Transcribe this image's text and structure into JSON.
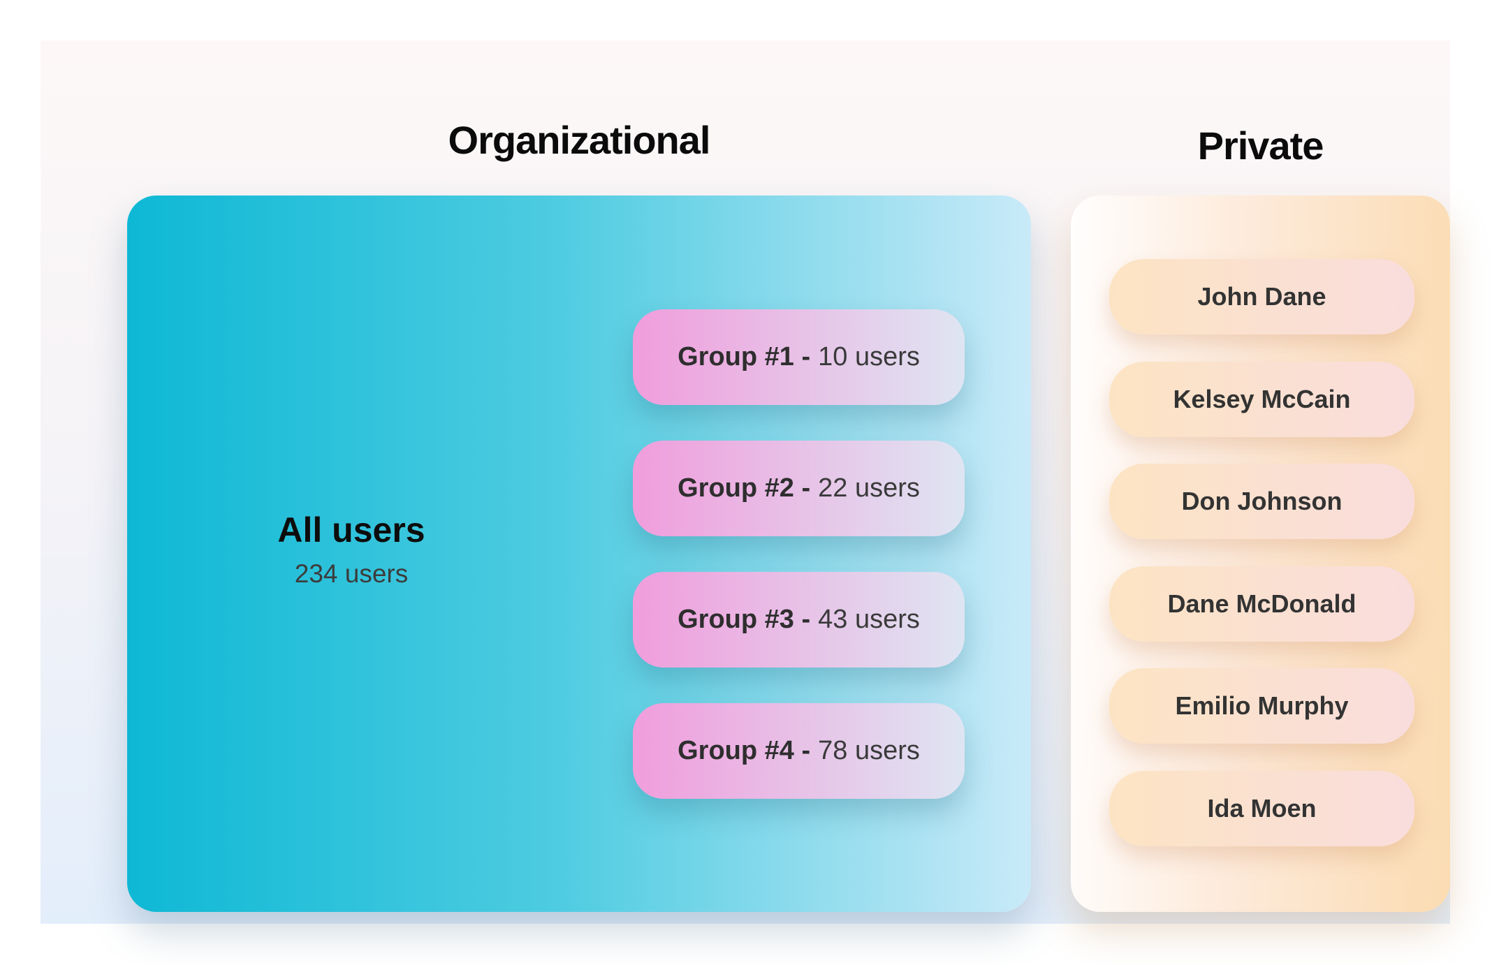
{
  "titles": {
    "organizational": "Organizational",
    "private": "Private"
  },
  "organizational": {
    "all_users": {
      "label": "All users",
      "count": "234 users"
    },
    "groups": [
      {
        "name": "Group #1 -",
        "count": "10 users"
      },
      {
        "name": "Group #2 -",
        "count": "22 users"
      },
      {
        "name": "Group #3 -",
        "count": "43 users"
      },
      {
        "name": "Group #4 -",
        "count": "78 users"
      }
    ]
  },
  "private": {
    "users": [
      {
        "name": "John Dane"
      },
      {
        "name": "Kelsey McCain"
      },
      {
        "name": "Don Johnson"
      },
      {
        "name": "Dane McDonald"
      },
      {
        "name": "Emilio Murphy"
      },
      {
        "name": "Ida Moen"
      }
    ]
  },
  "colors": {
    "canvas_top": "#fdf8f7",
    "canvas_bottom": "#e3eefb",
    "all_users_teal_start": "#0eb8d5",
    "all_users_teal_end": "#c9eaf8",
    "group_pill_start": "#f09ddc",
    "group_pill_end": "#dfe5f2",
    "private_panel_start": "#fffefe",
    "private_panel_end": "#fbdcb2",
    "user_pill_start": "#fce4c3",
    "user_pill_end": "#f9dddd",
    "title_text": "#0b0b0b",
    "pill_text": "#333333"
  }
}
